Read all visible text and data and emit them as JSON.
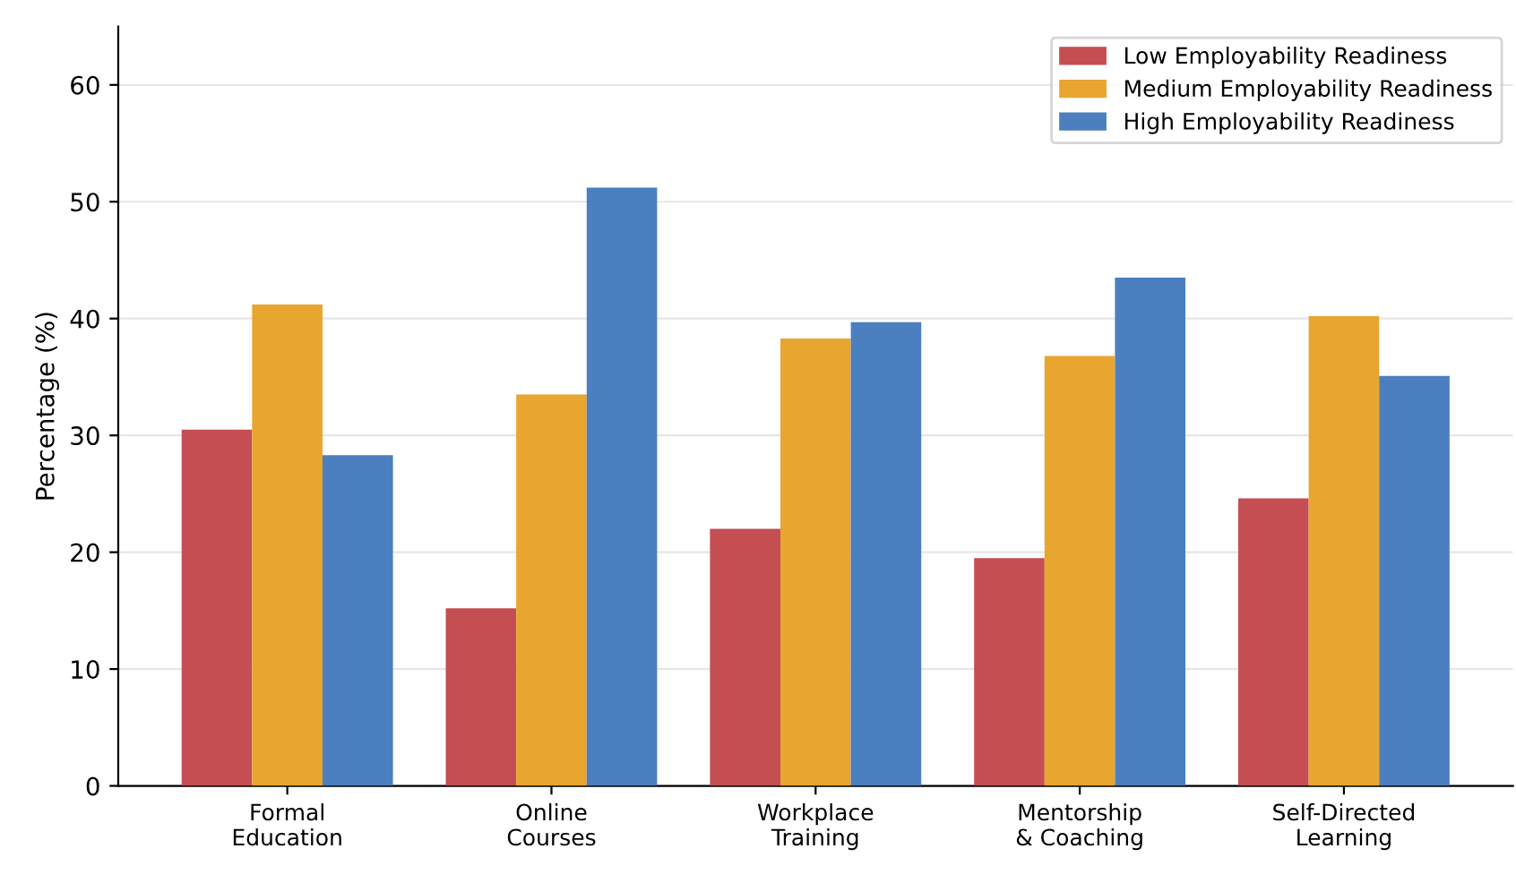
{
  "chart_data": {
    "type": "bar",
    "ylabel": "Percentage (%)",
    "categories": [
      "Formal\nEducation",
      "Online\nCourses",
      "Workplace\nTraining",
      "Mentorship\n& Coaching",
      "Self-Directed\nLearning"
    ],
    "series": [
      {
        "name": "Low Employability Readiness",
        "color": "#c44e52",
        "values": [
          30.5,
          15.2,
          22.0,
          19.5,
          24.6
        ]
      },
      {
        "name": "Medium Employability Readiness",
        "color": "#e8a530",
        "values": [
          41.2,
          33.5,
          38.3,
          36.8,
          40.2
        ]
      },
      {
        "name": "High Employability Readiness",
        "color": "#4c7fbf",
        "values": [
          28.3,
          51.2,
          39.7,
          43.5,
          35.1
        ]
      }
    ],
    "ylim": [
      0,
      65
    ],
    "yticks": [
      0,
      10,
      20,
      30,
      40,
      50,
      60
    ],
    "grid": "y",
    "legend": "top right"
  }
}
